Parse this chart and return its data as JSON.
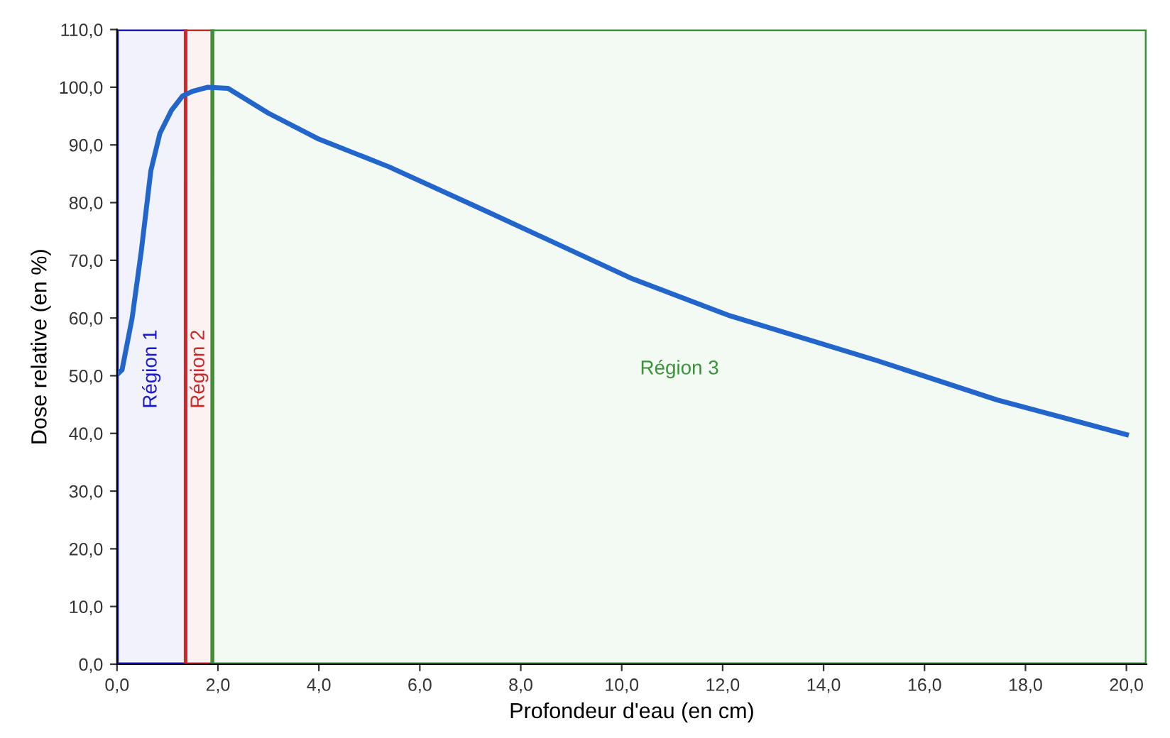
{
  "chart_data": {
    "type": "line",
    "xlabel": "Profondeur d'eau (en cm)",
    "ylabel": "Dose relative (en %)",
    "x": [
      0.04,
      0.1,
      0.3,
      0.48,
      0.67,
      0.85,
      1.08,
      1.3,
      1.5,
      1.8,
      2.2,
      3.0,
      4.0,
      5.39,
      7.32,
      10.21,
      12.14,
      15.03,
      17.44,
      20.0
    ],
    "series": [
      {
        "color": "#2266cc",
        "values": [
          50.5,
          51,
          60,
          71.5,
          85.5,
          92,
          96,
          98.5,
          99.3,
          100,
          99.8,
          95.5,
          91,
          86.2,
          78.5,
          66.8,
          60.4,
          52.7,
          45.8,
          39.8
        ]
      }
    ],
    "xlim": [
      0,
      20.4
    ],
    "ylim": [
      0,
      110
    ],
    "xticks": [
      {
        "value": 0,
        "label": "0,0"
      },
      {
        "value": 2,
        "label": "2,0"
      },
      {
        "value": 4,
        "label": "4,0"
      },
      {
        "value": 6,
        "label": "6,0"
      },
      {
        "value": 8,
        "label": "8,0"
      },
      {
        "value": 10,
        "label": "10,0"
      },
      {
        "value": 12,
        "label": "12,0"
      },
      {
        "value": 14,
        "label": "14,0"
      },
      {
        "value": 16,
        "label": "16,0"
      },
      {
        "value": 18,
        "label": "18,0"
      },
      {
        "value": 20,
        "label": "20,0"
      }
    ],
    "yticks": [
      {
        "value": 0,
        "label": "0,0"
      },
      {
        "value": 10,
        "label": "10,0"
      },
      {
        "value": 20,
        "label": "20,0"
      },
      {
        "value": 30,
        "label": "30,0"
      },
      {
        "value": 40,
        "label": "40,0"
      },
      {
        "value": 50,
        "label": "50,0"
      },
      {
        "value": 60,
        "label": "60,0"
      },
      {
        "value": 70,
        "label": "70,0"
      },
      {
        "value": 80,
        "label": "80,0"
      },
      {
        "value": 90,
        "label": "90,0"
      },
      {
        "value": 100,
        "label": "100,0"
      },
      {
        "value": 110,
        "label": "110,0"
      }
    ],
    "bands": [
      {
        "axis": "x",
        "from": 0,
        "to": 1.36,
        "label": "Région 1",
        "color": "#1a1acc"
      },
      {
        "axis": "x",
        "from": 1.36,
        "to": 1.89,
        "label": "Région 2",
        "color": "#cc2a2a"
      },
      {
        "axis": "x",
        "from": 1.89,
        "to": 20.4,
        "label": "Région 3",
        "color": "#3a923a"
      }
    ],
    "grid": false,
    "line_style": "solid",
    "marker": "none"
  }
}
